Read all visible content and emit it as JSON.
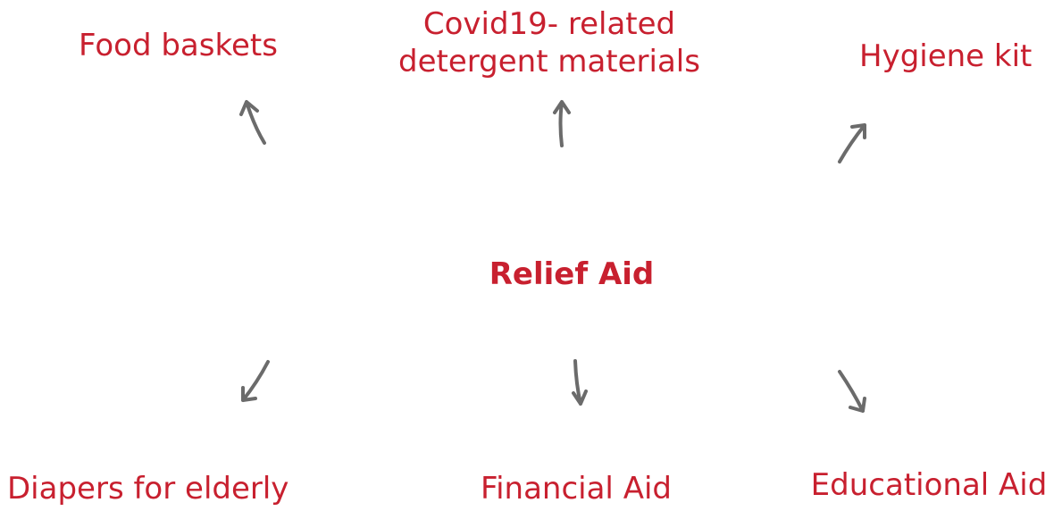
{
  "center": {
    "label": "Relief Aid"
  },
  "nodes": [
    {
      "label": "Food baskets"
    },
    {
      "label": "Covid19- related"
    },
    {
      "label": "detergent materials"
    },
    {
      "label": "Hygiene kit"
    },
    {
      "label": "Diapers for elderly"
    },
    {
      "label": "Financial Aid"
    },
    {
      "label": "Educational Aid"
    }
  ]
}
